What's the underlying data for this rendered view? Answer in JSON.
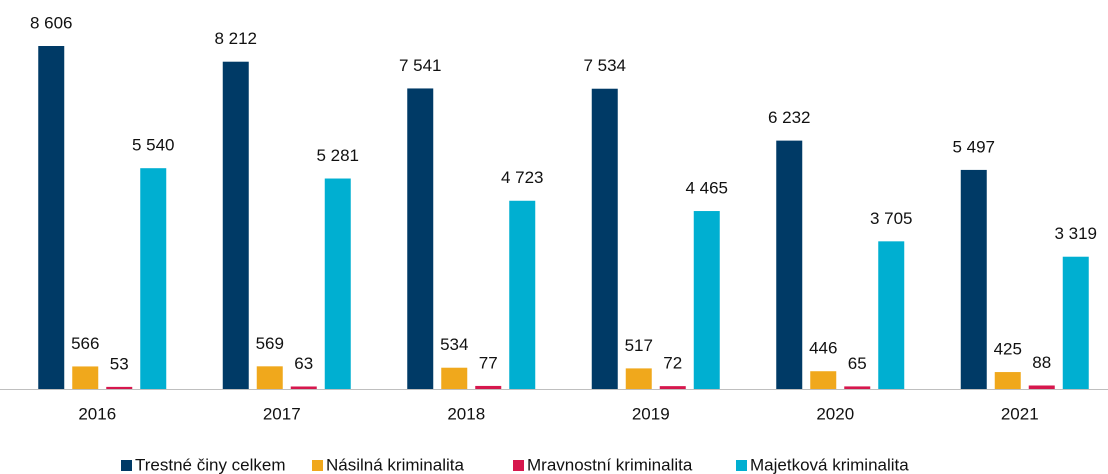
{
  "chart_data": {
    "type": "bar",
    "categories": [
      "2016",
      "2017",
      "2018",
      "2019",
      "2020",
      "2021"
    ],
    "series": [
      {
        "name": "Trestné činy celkem",
        "color": "#003a66",
        "values": [
          8606,
          8212,
          7541,
          7534,
          6232,
          5497
        ],
        "value_labels": [
          "8 606",
          "8 212",
          "7 541",
          "7 534",
          "6 232",
          "5 497"
        ]
      },
      {
        "name": "Násilná kriminalita",
        "color": "#f0a81c",
        "values": [
          566,
          569,
          534,
          517,
          446,
          425
        ]
      },
      {
        "name": "Mravnostní kriminalita",
        "color": "#d6174d",
        "values": [
          53,
          63,
          77,
          72,
          65,
          88
        ]
      },
      {
        "name": "Majetková kriminalita",
        "color": "#00afd1",
        "values": [
          5540,
          5281,
          4723,
          4465,
          3705,
          3319
        ],
        "value_labels": [
          "5 540",
          "5 281",
          "4 723",
          "4 465",
          "3 705",
          "3 319"
        ]
      }
    ]
  }
}
